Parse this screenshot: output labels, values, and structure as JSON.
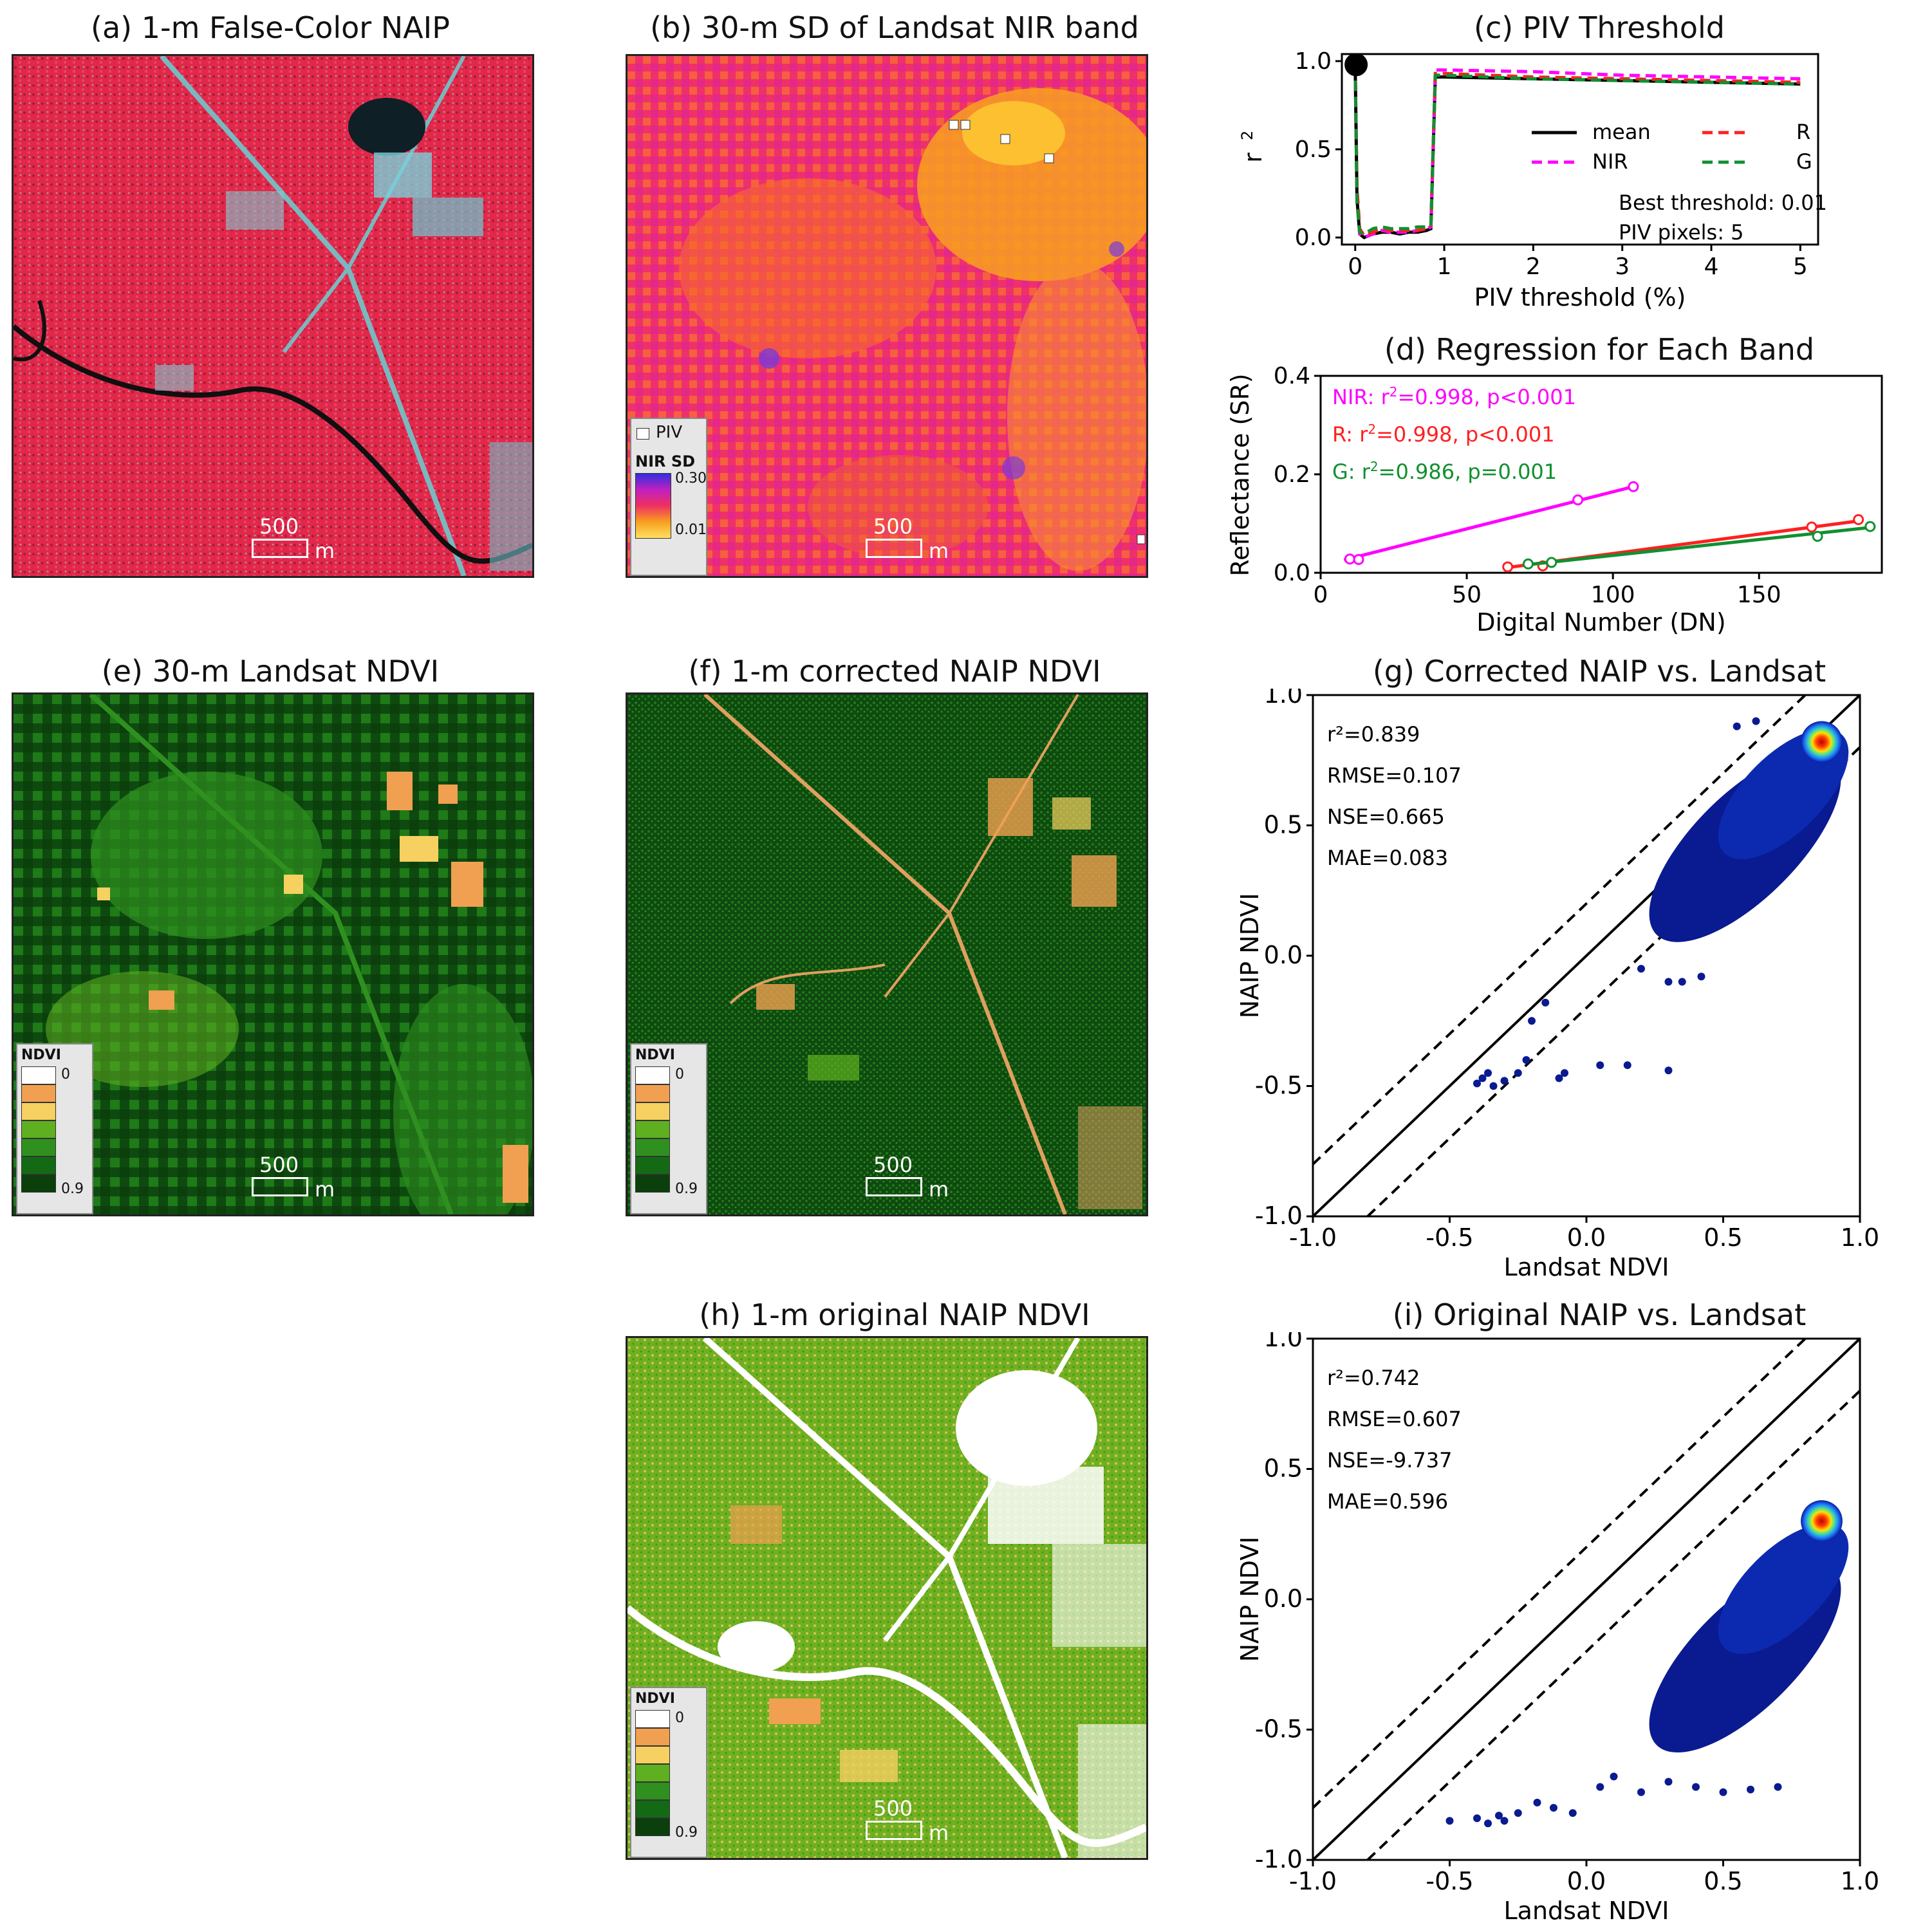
{
  "panels": {
    "a": {
      "title": "(a) 1-m False-Color NAIP"
    },
    "b": {
      "title": "(b) 30-m SD of Landsat NIR band"
    },
    "c": {
      "title": "(c) PIV Threshold"
    },
    "d": {
      "title": "(d) Regression for Each Band"
    },
    "e": {
      "title": "(e) 30-m Landsat NDVI"
    },
    "f": {
      "title": "(f) 1-m corrected NAIP NDVI"
    },
    "g": {
      "title": "(g) Corrected NAIP vs. Landsat"
    },
    "h": {
      "title": "(h) 1-m original NAIP NDVI"
    },
    "i": {
      "title": "(i) Original NAIP vs. Landsat"
    }
  },
  "scalebar": {
    "value": "500",
    "unit": "m"
  },
  "legend_sd": {
    "piv_label": "PIV",
    "title": "NIR SD",
    "max": "0.30",
    "min": "0.01"
  },
  "legend_ndvi": {
    "title": "NDVI",
    "min": "0",
    "max": "0.9",
    "colors": [
      "#ffffff",
      "#f0a050",
      "#f6d060",
      "#5fb020",
      "#2f9020",
      "#146a14",
      "#0b3f0b"
    ]
  },
  "colors": {
    "mean": "#000000",
    "NIR": "#ff00ff",
    "R": "#ff2020",
    "G": "#109030"
  },
  "chart_data": [
    {
      "id": "c",
      "type": "line",
      "title": "(c) PIV Threshold",
      "xlabel": "PIV threshold (%)",
      "ylabel": "r",
      "ylabel_sup": "2",
      "xlim": [
        -0.15,
        5.2
      ],
      "ylim": [
        -0.04,
        1.04
      ],
      "xticks": [
        "0",
        "1",
        "2",
        "3",
        "4",
        "5"
      ],
      "yticks": [
        "0.0",
        "0.5",
        "1.0"
      ],
      "x": [
        0,
        0.02,
        0.05,
        0.1,
        0.2,
        0.3,
        0.4,
        0.5,
        0.6,
        0.7,
        0.8,
        0.85,
        0.9,
        1.0,
        2.0,
        3.0,
        4.0,
        5.0
      ],
      "series": [
        {
          "name": "mean",
          "style": "solid",
          "values": [
            0.98,
            0.22,
            0.02,
            0.0,
            0.02,
            0.03,
            0.03,
            0.02,
            0.03,
            0.03,
            0.04,
            0.05,
            0.91,
            0.91,
            0.9,
            0.89,
            0.88,
            0.87
          ]
        },
        {
          "name": "NIR",
          "style": "dashed",
          "values": [
            0.98,
            0.25,
            0.02,
            0.0,
            0.02,
            0.04,
            0.03,
            0.03,
            0.03,
            0.04,
            0.05,
            0.06,
            0.95,
            0.95,
            0.94,
            0.92,
            0.91,
            0.9
          ]
        },
        {
          "name": "R",
          "style": "dashed",
          "values": [
            0.98,
            0.28,
            0.05,
            0.01,
            0.03,
            0.05,
            0.04,
            0.04,
            0.04,
            0.04,
            0.05,
            0.06,
            0.93,
            0.93,
            0.91,
            0.9,
            0.89,
            0.88
          ]
        },
        {
          "name": "G",
          "style": "dashed",
          "values": [
            0.98,
            0.2,
            0.03,
            0.02,
            0.05,
            0.06,
            0.05,
            0.05,
            0.05,
            0.06,
            0.06,
            0.07,
            0.92,
            0.92,
            0.9,
            0.89,
            0.88,
            0.87
          ]
        }
      ],
      "best_point": [
        0.01,
        0.98
      ],
      "annotations": [
        "Best threshold: 0.01",
        "PIV pixels: 5"
      ]
    },
    {
      "id": "d",
      "type": "scatter",
      "title": "(d) Regression for Each Band",
      "xlabel": "Digital Number (DN)",
      "ylabel": "Reflectance (SR)",
      "xlim": [
        0,
        192
      ],
      "ylim": [
        0,
        0.4
      ],
      "xticks": [
        "0",
        "50",
        "100",
        "150"
      ],
      "yticks": [
        "0.0",
        "0.2",
        "0.4"
      ],
      "series": [
        {
          "name": "NIR",
          "label": "NIR: r",
          "stats": "=0.998, p<0.001",
          "points": [
            [
              10,
              0.028
            ],
            [
              13,
              0.027
            ],
            [
              88,
              0.148
            ],
            [
              107,
              0.175
            ]
          ],
          "line": [
            [
              8,
              0.026
            ],
            [
              107,
              0.175
            ]
          ]
        },
        {
          "name": "R",
          "label": "R: r",
          "stats": "=0.998, p<0.001",
          "points": [
            [
              64,
              0.012
            ],
            [
              76,
              0.014
            ],
            [
              168,
              0.093
            ],
            [
              184,
              0.108
            ]
          ],
          "line": [
            [
              63,
              0.01
            ],
            [
              185,
              0.106
            ]
          ]
        },
        {
          "name": "G",
          "label": "G: r",
          "stats": "=0.986, p=0.001",
          "points": [
            [
              71,
              0.018
            ],
            [
              79,
              0.021
            ],
            [
              170,
              0.074
            ],
            [
              188,
              0.094
            ]
          ],
          "line": [
            [
              70,
              0.016
            ],
            [
              188,
              0.092
            ]
          ]
        }
      ]
    },
    {
      "id": "g",
      "type": "scatter",
      "title": "(g) Corrected NAIP vs. Landsat",
      "xlabel": "Landsat NDVI",
      "ylabel": "NAIP NDVI",
      "xlim": [
        -1.0,
        1.0
      ],
      "ylim": [
        -1.0,
        1.0
      ],
      "xticks": [
        "-1.0",
        "-0.5",
        "0.0",
        "0.5",
        "1.0"
      ],
      "yticks": [
        "-1.0",
        "-0.5",
        "0.0",
        "0.5",
        "1.0"
      ],
      "dense_cloud": {
        "center": [
          0.58,
          0.42
        ],
        "hot_spot": [
          0.86,
          0.82
        ]
      },
      "outliers": [
        [
          -0.38,
          -0.47
        ],
        [
          -0.34,
          -0.5
        ],
        [
          -0.36,
          -0.45
        ],
        [
          -0.3,
          -0.48
        ],
        [
          -0.4,
          -0.49
        ],
        [
          -0.22,
          -0.4
        ],
        [
          -0.2,
          -0.25
        ],
        [
          -0.15,
          -0.18
        ],
        [
          -0.08,
          -0.45
        ],
        [
          0.05,
          -0.42
        ],
        [
          0.15,
          -0.42
        ],
        [
          0.3,
          -0.44
        ],
        [
          -0.25,
          -0.45
        ],
        [
          -0.1,
          -0.47
        ],
        [
          0.2,
          -0.05
        ],
        [
          0.3,
          -0.1
        ],
        [
          0.35,
          -0.1
        ],
        [
          0.42,
          -0.08
        ],
        [
          0.55,
          0.88
        ],
        [
          0.62,
          0.9
        ]
      ],
      "stats": [
        "r²=0.839",
        "RMSE=0.107",
        "NSE=0.665",
        "MAE=0.083"
      ]
    },
    {
      "id": "i",
      "type": "scatter",
      "title": "(i) Original NAIP vs. Landsat",
      "xlabel": "Landsat NDVI",
      "ylabel": "NAIP NDVI",
      "xlim": [
        -1.0,
        1.0
      ],
      "ylim": [
        -1.0,
        1.0
      ],
      "xticks": [
        "-1.0",
        "-0.5",
        "0.0",
        "0.5",
        "1.0"
      ],
      "yticks": [
        "-1.0",
        "-0.5",
        "0.0",
        "0.5",
        "1.0"
      ],
      "dense_cloud": {
        "center": [
          0.58,
          -0.22
        ],
        "hot_spot": [
          0.86,
          0.3
        ]
      },
      "outliers": [
        [
          -0.5,
          -0.85
        ],
        [
          -0.4,
          -0.84
        ],
        [
          -0.36,
          -0.86
        ],
        [
          -0.32,
          -0.83
        ],
        [
          -0.3,
          -0.85
        ],
        [
          -0.25,
          -0.82
        ],
        [
          -0.18,
          -0.78
        ],
        [
          -0.12,
          -0.8
        ],
        [
          -0.05,
          -0.82
        ],
        [
          0.05,
          -0.72
        ],
        [
          0.1,
          -0.68
        ],
        [
          0.2,
          -0.74
        ],
        [
          0.3,
          -0.7
        ],
        [
          0.4,
          -0.72
        ],
        [
          0.5,
          -0.74
        ],
        [
          0.6,
          -0.73
        ],
        [
          0.7,
          -0.72
        ]
      ],
      "stats": [
        "r²=0.742",
        "RMSE=0.607",
        "NSE=-9.737",
        "MAE=0.596"
      ]
    }
  ]
}
